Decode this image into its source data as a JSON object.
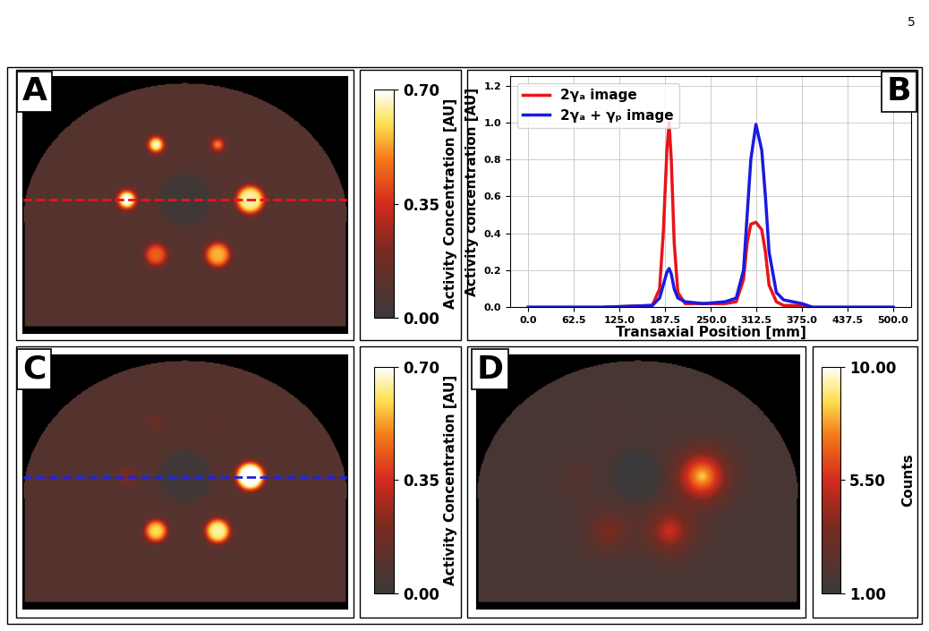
{
  "page_number": "5",
  "chart_data": [
    {
      "panel": "A",
      "type": "image",
      "background": 0.09,
      "cavity": {
        "x": 50,
        "y": 38,
        "r": 8,
        "activity": 0.02
      },
      "spheres": [
        {
          "x": 41,
          "y": 21,
          "r": 2.2,
          "activity": 0.7
        },
        {
          "x": 60,
          "y": 21,
          "r": 1.6,
          "activity": 0.55
        },
        {
          "x": 32,
          "y": 38,
          "r": 2.6,
          "activity": 0.75
        },
        {
          "x": 70,
          "y": 38,
          "r": 4.2,
          "activity": 0.65
        },
        {
          "x": 41,
          "y": 55,
          "r": 3.2,
          "activity": 0.45
        },
        {
          "x": 60,
          "y": 55,
          "r": 3.6,
          "activity": 0.55
        }
      ],
      "cut_line": {
        "y": 38,
        "color": "#e8141a",
        "line_style": "dashed"
      },
      "colorbar": {
        "label": "Activity Concentration [AU]",
        "range": [
          0.0,
          0.7
        ],
        "ticks": [
          {
            "value": 0.0,
            "label": "0.00"
          },
          {
            "value": 0.35,
            "label": "0.35"
          },
          {
            "value": 0.7,
            "label": "0.70"
          }
        ]
      }
    },
    {
      "panel": "B",
      "type": "line",
      "x": [
        0,
        100,
        170,
        180,
        185,
        190,
        193,
        196,
        200,
        205,
        215,
        240,
        270,
        285,
        295,
        300,
        305,
        312,
        320,
        325,
        330,
        340,
        350,
        375,
        390,
        500
      ],
      "series": [
        {
          "name": "2γₐ image",
          "color": "#e8141a",
          "values": [
            0,
            0,
            0.01,
            0.1,
            0.4,
            0.85,
            1.0,
            0.8,
            0.35,
            0.08,
            0.02,
            0.02,
            0.02,
            0.03,
            0.15,
            0.35,
            0.45,
            0.46,
            0.42,
            0.3,
            0.12,
            0.03,
            0.01,
            0.01,
            0,
            0
          ]
        },
        {
          "name": "2γₐ + γₚ image",
          "color": "#1a1ae0",
          "values": [
            0,
            0,
            0.01,
            0.05,
            0.12,
            0.19,
            0.21,
            0.18,
            0.1,
            0.05,
            0.03,
            0.02,
            0.03,
            0.05,
            0.2,
            0.5,
            0.8,
            0.99,
            0.85,
            0.6,
            0.3,
            0.08,
            0.04,
            0.02,
            0,
            0
          ]
        }
      ],
      "x_label": "Transaxial Position [mm]",
      "y_label": "Activity concentration [AU]",
      "xlim": [
        -25,
        525
      ],
      "xticks": [
        0.0,
        62.5,
        125.0,
        187.5,
        250.0,
        312.5,
        375.0,
        437.5,
        500.0
      ],
      "ylim": [
        0,
        1.25
      ],
      "yticks": [
        0.0,
        0.2,
        0.4,
        0.6,
        0.8,
        1.0,
        1.2
      ],
      "grid": true,
      "legend": "upper left"
    },
    {
      "panel": "C",
      "type": "image",
      "background": 0.09,
      "cavity": {
        "x": 50,
        "y": 38,
        "r": 8,
        "activity": 0.02
      },
      "spheres": [
        {
          "x": 41,
          "y": 21,
          "r": 2.2,
          "activity": 0.16
        },
        {
          "x": 60,
          "y": 21,
          "r": 1.6,
          "activity": 0.12
        },
        {
          "x": 32,
          "y": 38,
          "r": 2.6,
          "activity": 0.2
        },
        {
          "x": 70,
          "y": 38,
          "r": 4.2,
          "activity": 0.75
        },
        {
          "x": 41,
          "y": 55,
          "r": 3.2,
          "activity": 0.6
        },
        {
          "x": 60,
          "y": 55,
          "r": 3.6,
          "activity": 0.65
        }
      ],
      "cut_line": {
        "y": 38,
        "color": "#2222dd",
        "line_style": "dashed"
      },
      "colorbar": {
        "label": "Activity Concentration [AU]",
        "range": [
          0.0,
          0.7
        ],
        "ticks": [
          {
            "value": 0.0,
            "label": "0.00"
          },
          {
            "value": 0.35,
            "label": "0.35"
          },
          {
            "value": 0.7,
            "label": "0.70"
          }
        ]
      }
    },
    {
      "panel": "D",
      "type": "image",
      "background": 1.6,
      "cavity": {
        "x": 50,
        "y": 38,
        "r": 8,
        "activity": 1.0
      },
      "spheres": [
        {
          "x": 41,
          "y": 21,
          "r": 2.2,
          "activity": 2.0
        },
        {
          "x": 60,
          "y": 21,
          "r": 1.6,
          "activity": 1.8
        },
        {
          "x": 32,
          "y": 38,
          "r": 2.6,
          "activity": 2.4
        },
        {
          "x": 70,
          "y": 38,
          "r": 4.2,
          "activity": 10.0
        },
        {
          "x": 41,
          "y": 55,
          "r": 3.2,
          "activity": 4.5
        },
        {
          "x": 60,
          "y": 55,
          "r": 3.6,
          "activity": 6.5
        }
      ],
      "colorbar": {
        "label": "Counts",
        "range": [
          1.0,
          10.0
        ],
        "ticks": [
          {
            "value": 1.0,
            "label": "1.00"
          },
          {
            "value": 5.5,
            "label": "5.50"
          },
          {
            "value": 10.0,
            "label": "10.00"
          }
        ]
      }
    }
  ]
}
